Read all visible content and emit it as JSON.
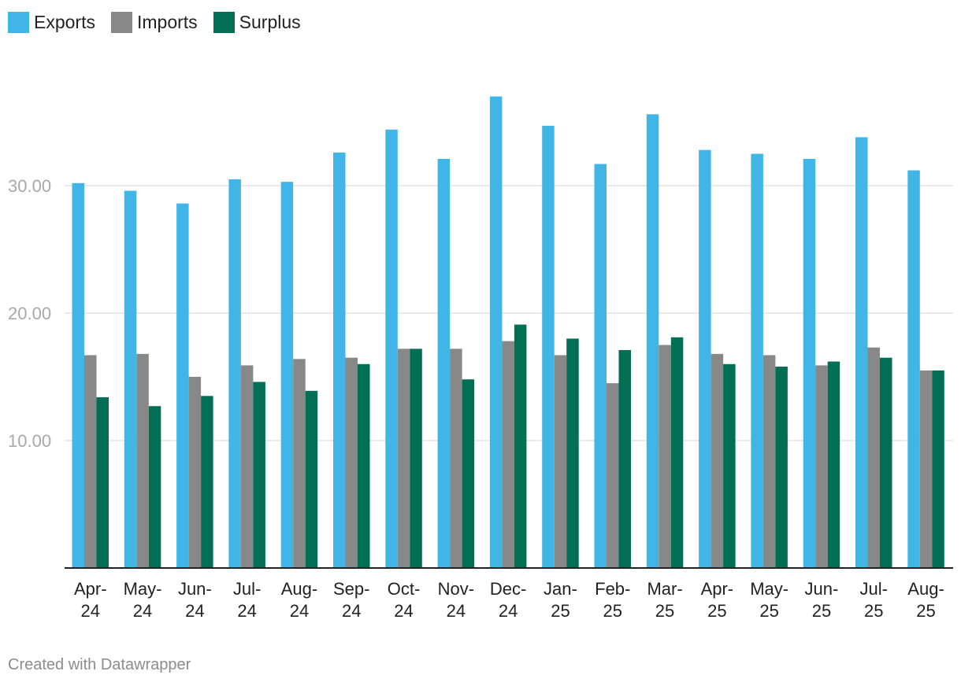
{
  "chart_data": {
    "type": "bar",
    "title": "",
    "xlabel": "",
    "ylabel": "",
    "ylim": [
      0,
      40
    ],
    "yticks": [
      10,
      20,
      30
    ],
    "ytick_labels": [
      "10.00",
      "20.00",
      "30.00"
    ],
    "grid": true,
    "legend_position": "top-left",
    "categories": [
      [
        "Apr-",
        "24"
      ],
      [
        "May-",
        "24"
      ],
      [
        "Jun-",
        "24"
      ],
      [
        "Jul-",
        "24"
      ],
      [
        "Aug-",
        "24"
      ],
      [
        "Sep-",
        "24"
      ],
      [
        "Oct-",
        "24"
      ],
      [
        "Nov-",
        "24"
      ],
      [
        "Dec-",
        "24"
      ],
      [
        "Jan-",
        "25"
      ],
      [
        "Feb-",
        "25"
      ],
      [
        "Mar-",
        "25"
      ],
      [
        "Apr-",
        "25"
      ],
      [
        "May-",
        "25"
      ],
      [
        "Jun-",
        "25"
      ],
      [
        "Jul-",
        "25"
      ],
      [
        "Aug-",
        "25"
      ]
    ],
    "series": [
      {
        "name": "Exports",
        "color": "#41b6e6",
        "values": [
          30.2,
          29.6,
          28.6,
          30.5,
          30.3,
          32.6,
          34.4,
          32.1,
          37.0,
          34.7,
          31.7,
          35.6,
          32.8,
          32.5,
          32.1,
          33.8,
          31.2
        ]
      },
      {
        "name": "Imports",
        "color": "#888888",
        "values": [
          16.7,
          16.8,
          15.0,
          15.9,
          16.4,
          16.5,
          17.2,
          17.2,
          17.8,
          16.7,
          14.5,
          17.5,
          16.8,
          16.7,
          15.9,
          17.3,
          15.5
        ]
      },
      {
        "name": "Surplus",
        "color": "#006f54",
        "values": [
          13.4,
          12.7,
          13.5,
          14.6,
          13.9,
          16.0,
          17.2,
          14.8,
          19.1,
          18.0,
          17.1,
          18.1,
          16.0,
          15.8,
          16.2,
          16.5,
          15.5
        ]
      }
    ]
  },
  "footer": {
    "credit": "Created with Datawrapper"
  }
}
